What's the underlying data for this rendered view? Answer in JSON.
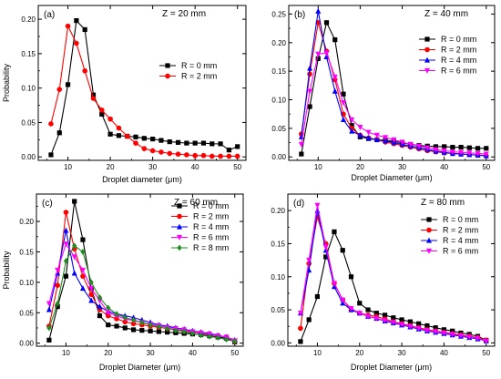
{
  "chart_data": [
    {
      "type": "line",
      "panel": "(a)",
      "annotation": "Z = 20 mm",
      "xlabel": "Droplet diameter (μm)",
      "ylabel": "Probability",
      "xlim": [
        3,
        52
      ],
      "ylim": [
        -0.005,
        0.22
      ],
      "xticks": [
        10,
        20,
        30,
        40,
        50
      ],
      "yticks": [
        0.0,
        0.05,
        0.1,
        0.15,
        0.2
      ],
      "ytick_labels": [
        "0.00",
        "0.05",
        "0.10",
        "0.15",
        "0.20"
      ],
      "x": [
        6,
        8,
        10,
        12,
        14,
        16,
        18,
        20,
        22,
        24,
        26,
        28,
        30,
        32,
        34,
        36,
        38,
        40,
        42,
        44,
        46,
        48,
        50
      ],
      "legend_position": "center-right",
      "series": [
        {
          "name": "R = 0 mm",
          "color": "#000000",
          "marker": "square",
          "values": [
            0.003,
            0.035,
            0.105,
            0.198,
            0.185,
            0.09,
            0.062,
            0.033,
            0.031,
            0.03,
            0.029,
            0.027,
            0.026,
            0.024,
            0.022,
            0.021,
            0.02,
            0.02,
            0.02,
            0.019,
            0.019,
            0.01,
            0.015
          ]
        },
        {
          "name": "R = 2 mm",
          "color": "#ff0000",
          "marker": "circle",
          "values": [
            0.048,
            0.098,
            0.19,
            0.165,
            0.125,
            0.085,
            0.068,
            0.055,
            0.042,
            0.03,
            0.02,
            0.012,
            0.009,
            0.007,
            0.005,
            0.004,
            0.003,
            0.002,
            0.002,
            0.001,
            0.001,
            0.001,
            0.001
          ]
        }
      ]
    },
    {
      "type": "line",
      "panel": "(b)",
      "annotation": "Z = 40 mm",
      "xlabel": "Droplet Diameter (μm)",
      "ylabel": "",
      "xlim": [
        3,
        52
      ],
      "ylim": [
        -0.006,
        0.265
      ],
      "xticks": [
        10,
        20,
        30,
        40,
        50
      ],
      "yticks": [
        0.0,
        0.05,
        0.1,
        0.15,
        0.2,
        0.25
      ],
      "ytick_labels": [
        "0.00",
        "0.05",
        "0.10",
        "0.15",
        "0.20",
        "0.25"
      ],
      "x": [
        6,
        8,
        10,
        12,
        14,
        16,
        18,
        20,
        22,
        24,
        26,
        28,
        30,
        32,
        34,
        36,
        38,
        40,
        42,
        44,
        46,
        48,
        50
      ],
      "legend_position": "center-right",
      "series": [
        {
          "name": "R = 0 mm",
          "color": "#000000",
          "marker": "square",
          "values": [
            0.005,
            0.088,
            0.172,
            0.235,
            0.205,
            0.11,
            0.055,
            0.035,
            0.032,
            0.03,
            0.029,
            0.027,
            0.025,
            0.022,
            0.02,
            0.019,
            0.018,
            0.018,
            0.017,
            0.017,
            0.016,
            0.015,
            0.015
          ]
        },
        {
          "name": "R = 2 mm",
          "color": "#ff0000",
          "marker": "circle",
          "values": [
            0.04,
            0.145,
            0.235,
            0.185,
            0.135,
            0.075,
            0.05,
            0.038,
            0.033,
            0.03,
            0.026,
            0.023,
            0.02,
            0.017,
            0.014,
            0.011,
            0.009,
            0.007,
            0.006,
            0.005,
            0.004,
            0.003,
            0.002
          ]
        },
        {
          "name": "R = 4 mm",
          "color": "#0000ff",
          "marker": "triangle-up",
          "values": [
            0.035,
            0.155,
            0.255,
            0.175,
            0.115,
            0.065,
            0.045,
            0.038,
            0.033,
            0.03,
            0.028,
            0.025,
            0.022,
            0.019,
            0.016,
            0.013,
            0.01,
            0.008,
            0.006,
            0.005,
            0.004,
            0.003,
            0.002
          ]
        },
        {
          "name": "R = 6 mm",
          "color": "#ff00ff",
          "marker": "triangle-down",
          "values": [
            0.022,
            0.115,
            0.18,
            0.182,
            0.14,
            0.095,
            0.065,
            0.052,
            0.043,
            0.038,
            0.034,
            0.03,
            0.026,
            0.022,
            0.019,
            0.016,
            0.013,
            0.011,
            0.009,
            0.008,
            0.007,
            0.006,
            0.005
          ]
        }
      ]
    },
    {
      "type": "line",
      "panel": "(c)",
      "annotation": "Z = 60 mm",
      "xlabel": "Droplet Diameter (μm)",
      "ylabel": "Probability",
      "xlim": [
        3,
        52
      ],
      "ylim": [
        -0.005,
        0.245
      ],
      "xticks": [
        10,
        20,
        30,
        40,
        50
      ],
      "yticks": [
        0.0,
        0.05,
        0.1,
        0.15,
        0.2
      ],
      "ytick_labels": [
        "0.00",
        "0.05",
        "0.10",
        "0.15",
        "0.20"
      ],
      "x": [
        6,
        8,
        10,
        12,
        14,
        16,
        18,
        20,
        22,
        24,
        26,
        28,
        30,
        32,
        34,
        36,
        38,
        40,
        42,
        44,
        46,
        48,
        50
      ],
      "legend_position": "center-right",
      "series": [
        {
          "name": "R = 0 mm",
          "color": "#000000",
          "marker": "square",
          "values": [
            0.005,
            0.06,
            0.11,
            0.233,
            0.17,
            0.09,
            0.045,
            0.03,
            0.028,
            0.025,
            0.022,
            0.021,
            0.02,
            0.019,
            0.018,
            0.017,
            0.016,
            0.015,
            0.014,
            0.012,
            0.01,
            0.008,
            0.002
          ]
        },
        {
          "name": "R = 2 mm",
          "color": "#ff0000",
          "marker": "circle",
          "values": [
            0.028,
            0.095,
            0.215,
            0.155,
            0.11,
            0.08,
            0.055,
            0.045,
            0.04,
            0.035,
            0.032,
            0.03,
            0.028,
            0.026,
            0.024,
            0.022,
            0.02,
            0.018,
            0.016,
            0.014,
            0.012,
            0.01,
            0.003
          ]
        },
        {
          "name": "R = 4 mm",
          "color": "#0000ff",
          "marker": "triangle-up",
          "values": [
            0.055,
            0.115,
            0.185,
            0.115,
            0.09,
            0.07,
            0.06,
            0.052,
            0.048,
            0.045,
            0.042,
            0.038,
            0.034,
            0.03,
            0.028,
            0.025,
            0.023,
            0.02,
            0.018,
            0.016,
            0.013,
            0.01,
            0.005
          ]
        },
        {
          "name": "R = 6 mm",
          "color": "#ff00ff",
          "marker": "triangle-down",
          "values": [
            0.065,
            0.12,
            0.163,
            0.142,
            0.12,
            0.09,
            0.07,
            0.05,
            0.045,
            0.04,
            0.037,
            0.034,
            0.031,
            0.029,
            0.026,
            0.024,
            0.022,
            0.019,
            0.017,
            0.015,
            0.012,
            0.01,
            0.004
          ]
        },
        {
          "name": "R = 8 mm",
          "color": "#228b22",
          "marker": "diamond",
          "values": [
            0.025,
            0.065,
            0.135,
            0.16,
            0.15,
            0.1,
            0.075,
            0.058,
            0.048,
            0.042,
            0.038,
            0.034,
            0.03,
            0.027,
            0.024,
            0.021,
            0.019,
            0.016,
            0.013,
            0.011,
            0.009,
            0.006,
            0.003
          ]
        }
      ]
    },
    {
      "type": "line",
      "panel": "(d)",
      "annotation": "Z = 80 mm",
      "xlabel": "Droplet Diameter (μm)",
      "ylabel": "",
      "xlim": [
        3,
        52
      ],
      "ylim": [
        -0.005,
        0.225
      ],
      "xticks": [
        10,
        20,
        30,
        40,
        50
      ],
      "yticks": [
        0.0,
        0.05,
        0.1,
        0.15,
        0.2
      ],
      "ytick_labels": [
        "0.00",
        "0.05",
        "0.10",
        "0.15",
        "0.20"
      ],
      "x": [
        6,
        8,
        10,
        12,
        14,
        16,
        18,
        20,
        22,
        24,
        26,
        28,
        30,
        32,
        34,
        36,
        38,
        40,
        42,
        44,
        46,
        48,
        50
      ],
      "legend_position": "center-right",
      "series": [
        {
          "name": "R = 0 mm",
          "color": "#000000",
          "marker": "square",
          "values": [
            0.002,
            0.035,
            0.07,
            0.13,
            0.168,
            0.14,
            0.1,
            0.06,
            0.05,
            0.045,
            0.042,
            0.038,
            0.035,
            0.032,
            0.029,
            0.026,
            0.023,
            0.02,
            0.018,
            0.015,
            0.013,
            0.01,
            0.004
          ]
        },
        {
          "name": "R = 2 mm",
          "color": "#ff0000",
          "marker": "circle",
          "values": [
            0.022,
            0.12,
            0.19,
            0.15,
            0.09,
            0.065,
            0.05,
            0.045,
            0.042,
            0.04,
            0.036,
            0.032,
            0.029,
            0.026,
            0.023,
            0.02,
            0.018,
            0.016,
            0.014,
            0.012,
            0.01,
            0.008,
            0.004
          ]
        },
        {
          "name": "R = 4 mm",
          "color": "#0000ff",
          "marker": "triangle-up",
          "values": [
            0.045,
            0.11,
            0.2,
            0.14,
            0.085,
            0.06,
            0.05,
            0.045,
            0.04,
            0.037,
            0.033,
            0.03,
            0.027,
            0.024,
            0.021,
            0.018,
            0.016,
            0.014,
            0.012,
            0.01,
            0.008,
            0.006,
            0.003
          ]
        },
        {
          "name": "R = 6 mm",
          "color": "#ff00ff",
          "marker": "triangle-down",
          "values": [
            0.045,
            0.125,
            0.208,
            0.145,
            0.09,
            0.065,
            0.052,
            0.045,
            0.04,
            0.037,
            0.034,
            0.031,
            0.028,
            0.025,
            0.022,
            0.019,
            0.017,
            0.015,
            0.013,
            0.011,
            0.009,
            0.007,
            0.003
          ]
        }
      ]
    }
  ]
}
